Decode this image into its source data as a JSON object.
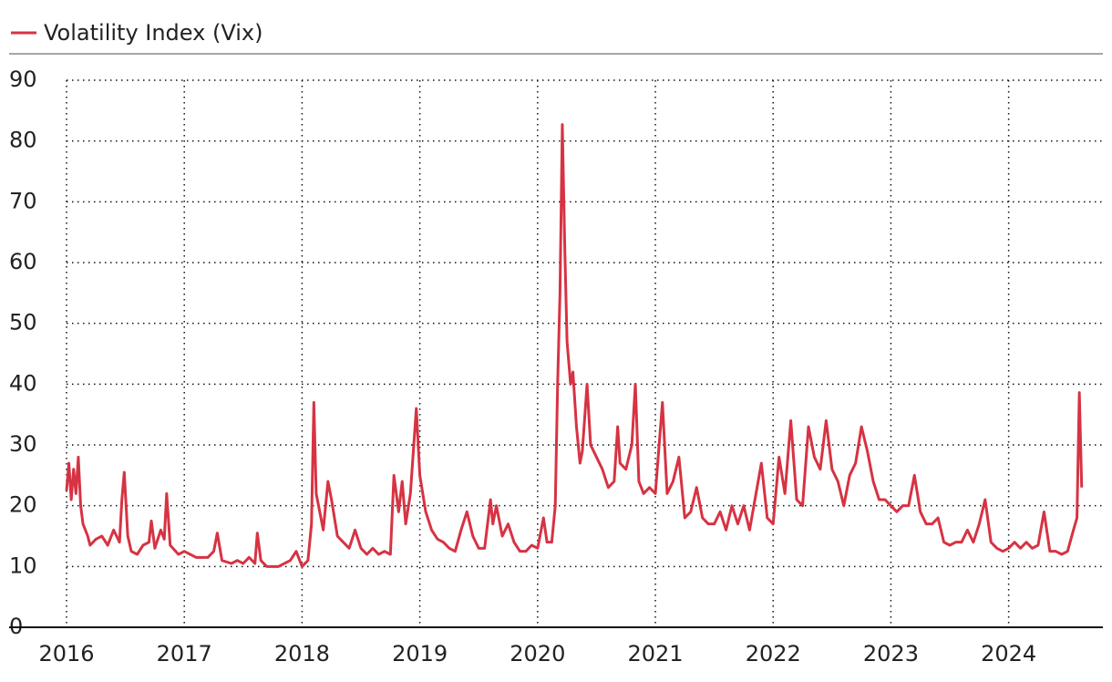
{
  "chart_data": {
    "type": "line",
    "series": [
      {
        "name": "Volatility Index (Vix)",
        "color": "#d63343",
        "x": [
          2016.0,
          2016.02,
          2016.04,
          2016.06,
          2016.08,
          2016.1,
          2016.12,
          2016.14,
          2016.18,
          2016.2,
          2016.25,
          2016.3,
          2016.35,
          2016.4,
          2016.45,
          2016.47,
          2016.49,
          2016.52,
          2016.55,
          2016.6,
          2016.65,
          2016.7,
          2016.72,
          2016.75,
          2016.8,
          2016.83,
          2016.85,
          2016.88,
          2016.95,
          2017.0,
          2017.1,
          2017.2,
          2017.25,
          2017.28,
          2017.32,
          2017.4,
          2017.45,
          2017.5,
          2017.55,
          2017.6,
          2017.62,
          2017.65,
          2017.7,
          2017.8,
          2017.9,
          2017.95,
          2018.0,
          2018.05,
          2018.08,
          2018.1,
          2018.12,
          2018.15,
          2018.18,
          2018.22,
          2018.25,
          2018.3,
          2018.35,
          2018.4,
          2018.45,
          2018.5,
          2018.55,
          2018.6,
          2018.65,
          2018.7,
          2018.75,
          2018.78,
          2018.82,
          2018.85,
          2018.88,
          2018.92,
          2018.97,
          2019.0,
          2019.05,
          2019.1,
          2019.15,
          2019.2,
          2019.25,
          2019.3,
          2019.35,
          2019.4,
          2019.45,
          2019.5,
          2019.55,
          2019.6,
          2019.62,
          2019.65,
          2019.7,
          2019.75,
          2019.8,
          2019.85,
          2019.9,
          2019.95,
          2020.0,
          2020.05,
          2020.08,
          2020.12,
          2020.15,
          2020.17,
          2020.19,
          2020.21,
          2020.23,
          2020.25,
          2020.28,
          2020.3,
          2020.33,
          2020.36,
          2020.38,
          2020.42,
          2020.45,
          2020.5,
          2020.55,
          2020.6,
          2020.65,
          2020.68,
          2020.7,
          2020.75,
          2020.8,
          2020.83,
          2020.86,
          2020.9,
          2020.95,
          2021.0,
          2021.06,
          2021.1,
          2021.15,
          2021.2,
          2021.25,
          2021.3,
          2021.35,
          2021.4,
          2021.45,
          2021.5,
          2021.55,
          2021.6,
          2021.65,
          2021.7,
          2021.75,
          2021.8,
          2021.9,
          2021.95,
          2022.0,
          2022.05,
          2022.1,
          2022.15,
          2022.2,
          2022.25,
          2022.3,
          2022.35,
          2022.4,
          2022.45,
          2022.5,
          2022.55,
          2022.6,
          2022.65,
          2022.7,
          2022.75,
          2022.8,
          2022.85,
          2022.9,
          2022.95,
          2023.0,
          2023.05,
          2023.1,
          2023.15,
          2023.2,
          2023.25,
          2023.3,
          2023.35,
          2023.4,
          2023.45,
          2023.5,
          2023.55,
          2023.6,
          2023.65,
          2023.7,
          2023.75,
          2023.8,
          2023.85,
          2023.9,
          2023.95,
          2024.0,
          2024.05,
          2024.1,
          2024.15,
          2024.2,
          2024.25,
          2024.3,
          2024.35,
          2024.4,
          2024.45,
          2024.5,
          2024.55,
          2024.58,
          2024.6,
          2024.62
        ],
        "values": [
          22.5,
          27,
          21,
          26,
          22,
          28,
          20,
          17,
          15,
          13.5,
          14.5,
          15,
          13.5,
          16,
          14,
          21,
          25.5,
          15,
          12.5,
          12,
          13.5,
          14,
          17.5,
          13,
          16,
          14.5,
          22,
          13.5,
          12,
          12.5,
          11.5,
          11.5,
          12.5,
          15.5,
          11,
          10.5,
          11,
          10.5,
          11.5,
          10.5,
          15.5,
          11,
          10,
          10,
          11,
          12.5,
          10,
          11,
          17,
          37,
          22,
          19,
          16,
          24,
          21,
          15,
          14,
          13,
          16,
          13,
          12,
          13,
          12,
          12.5,
          12,
          25,
          19,
          24,
          17,
          22,
          36,
          25,
          19,
          16,
          14.5,
          14,
          13,
          12.5,
          16,
          19,
          15,
          13,
          13,
          21,
          17,
          20,
          15,
          17,
          14,
          12.5,
          12.5,
          13.5,
          13,
          18,
          14,
          14,
          20,
          40,
          55,
          82.7,
          63,
          47,
          40,
          42,
          33,
          27,
          29,
          40,
          30,
          28,
          26,
          23,
          24,
          33,
          27,
          26,
          30,
          40,
          24,
          22,
          23,
          22,
          37,
          22,
          24,
          28,
          18,
          19,
          23,
          18,
          17,
          17,
          19,
          16,
          20,
          17,
          20,
          16,
          27,
          18,
          17,
          28,
          22,
          34,
          21,
          20,
          33,
          28,
          26,
          34,
          26,
          24,
          20,
          25,
          27,
          33,
          29,
          24,
          21,
          21,
          20,
          19,
          20,
          20,
          25,
          19,
          17,
          17,
          18,
          14,
          13.5,
          14,
          14,
          16,
          14,
          17,
          21,
          14,
          13,
          12.5,
          13,
          14,
          13,
          14,
          13,
          13.5,
          19,
          12.5,
          12.5,
          12,
          12.5,
          16,
          18,
          38.6,
          23
        ]
      }
    ],
    "xlim": [
      2016,
      2024.8
    ],
    "xticks": [
      2016,
      2017,
      2018,
      2019,
      2020,
      2021,
      2022,
      2023,
      2024
    ],
    "ylim": [
      0,
      90
    ],
    "yticks": [
      0,
      10,
      20,
      30,
      40,
      50,
      60,
      70,
      80,
      90
    ],
    "grid": true
  }
}
